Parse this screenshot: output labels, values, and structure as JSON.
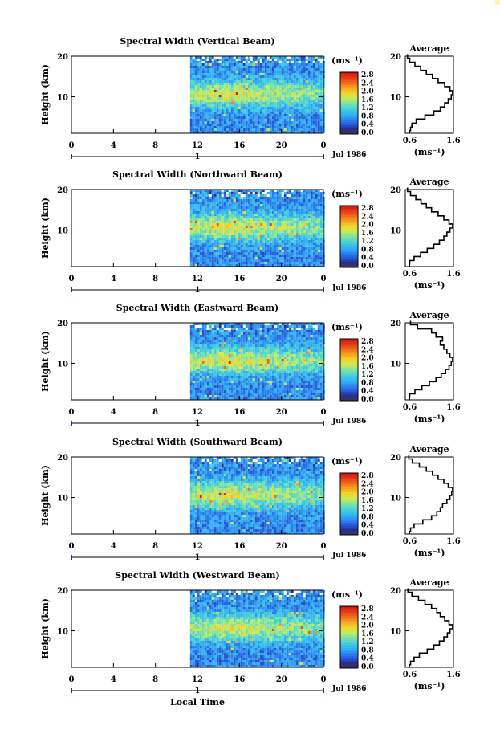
{
  "chart_data": [
    {
      "type": "heatmap",
      "title": "Spectral Width (Vertical Beam)",
      "ylabel": "Height (km)",
      "x_ticks": [
        "0",
        "4",
        "8",
        "12",
        "16",
        "20",
        "0"
      ],
      "xlim": [
        0,
        24
      ],
      "y_ticks": [
        "10",
        "20"
      ],
      "ylim": [
        1,
        20
      ],
      "data_start_hour": 11.3,
      "colorbar": {
        "unit": "(ms⁻¹)",
        "ticks": [
          "2.8",
          "2.4",
          "2.0",
          "1.6",
          "1.2",
          "0.8",
          "0.4",
          "0.0"
        ],
        "range": [
          0,
          3
        ]
      },
      "date_marker": "1",
      "date_label": "Jul 1986",
      "profile": {
        "title": "Average",
        "x_ticks": [
          "0.6",
          "1.6"
        ],
        "y_ticks": [
          "10",
          "20"
        ],
        "xlabel": "(ms⁻¹)",
        "xlim": [
          0.5,
          1.6
        ],
        "height": [
          2,
          3,
          4,
          5,
          6,
          7,
          8,
          9,
          10,
          11,
          12,
          13,
          14,
          15,
          16,
          17,
          18,
          19,
          20
        ],
        "width": [
          0.62,
          0.65,
          0.75,
          0.95,
          1.15,
          1.3,
          1.4,
          1.48,
          1.55,
          1.58,
          1.52,
          1.4,
          1.25,
          1.12,
          0.98,
          0.85,
          0.72,
          0.6,
          0.55
        ]
      }
    },
    {
      "type": "heatmap",
      "title": "Spectral Width (Northward Beam)",
      "ylabel": "Height (km)",
      "x_ticks": [
        "0",
        "4",
        "8",
        "12",
        "16",
        "20",
        "0"
      ],
      "xlim": [
        0,
        24
      ],
      "y_ticks": [
        "10",
        "20"
      ],
      "ylim": [
        1,
        20
      ],
      "data_start_hour": 11.3,
      "colorbar": {
        "unit": "(ms⁻¹)",
        "ticks": [
          "2.8",
          "2.4",
          "2.0",
          "1.6",
          "1.2",
          "0.8",
          "0.4",
          "0.0"
        ],
        "range": [
          0,
          3
        ]
      },
      "date_marker": "1",
      "date_label": "Jul 1986",
      "profile": {
        "title": "Average",
        "x_ticks": [
          "0.6",
          "1.6"
        ],
        "y_ticks": [
          "10",
          "20"
        ],
        "xlabel": "(ms⁻¹)",
        "xlim": [
          0.5,
          1.6
        ],
        "height": [
          2,
          3,
          4,
          5,
          6,
          7,
          8,
          9,
          10,
          11,
          12,
          13,
          14,
          15,
          16,
          17,
          18,
          19,
          20
        ],
        "width": [
          0.6,
          0.7,
          0.85,
          1.0,
          1.15,
          1.28,
          1.38,
          1.45,
          1.52,
          1.58,
          1.5,
          1.38,
          1.25,
          1.1,
          0.98,
          0.86,
          0.74,
          0.62,
          0.55
        ]
      }
    },
    {
      "type": "heatmap",
      "title": "Spectral Width (Eastward Beam)",
      "ylabel": "Height (km)",
      "x_ticks": [
        "0",
        "4",
        "8",
        "12",
        "16",
        "20",
        "0"
      ],
      "xlim": [
        0,
        24
      ],
      "y_ticks": [
        "10",
        "20"
      ],
      "ylim": [
        1,
        20
      ],
      "data_start_hour": 11.3,
      "colorbar": {
        "unit": "(ms⁻¹)",
        "ticks": [
          "2.8",
          "2.4",
          "2.0",
          "1.6",
          "1.2",
          "0.8",
          "0.4",
          "0.0"
        ],
        "range": [
          0,
          3
        ]
      },
      "date_marker": "1",
      "date_label": "Jul 1986",
      "profile": {
        "title": "Average",
        "x_ticks": [
          "0.6",
          "1.6"
        ],
        "y_ticks": [
          "10",
          "20"
        ],
        "xlabel": "(ms⁻¹)",
        "xlim": [
          0.5,
          1.6
        ],
        "height": [
          2,
          3,
          4,
          5,
          6,
          7,
          8,
          9,
          10,
          11,
          12,
          13,
          14,
          15,
          16,
          17,
          18,
          19,
          20
        ],
        "width": [
          0.6,
          0.72,
          0.88,
          1.05,
          1.2,
          1.32,
          1.42,
          1.5,
          1.55,
          1.58,
          1.52,
          1.45,
          1.38,
          1.3,
          1.35,
          1.2,
          1.1,
          0.78,
          0.62
        ]
      }
    },
    {
      "type": "heatmap",
      "title": "Spectral Width (Southward Beam)",
      "ylabel": "Height (km)",
      "x_ticks": [
        "0",
        "4",
        "8",
        "12",
        "16",
        "20",
        "0"
      ],
      "xlim": [
        0,
        24
      ],
      "y_ticks": [
        "10",
        "20"
      ],
      "ylim": [
        1,
        20
      ],
      "data_start_hour": 11.3,
      "colorbar": {
        "unit": "(ms⁻¹)",
        "ticks": [
          "2.8",
          "2.4",
          "2.0",
          "1.6",
          "1.2",
          "0.8",
          "0.4",
          "0.0"
        ],
        "range": [
          0,
          3
        ]
      },
      "date_marker": "1",
      "date_label": "Jul 1986",
      "profile": {
        "title": "Average",
        "x_ticks": [
          "0.6",
          "1.6"
        ],
        "y_ticks": [
          "10",
          "20"
        ],
        "xlabel": "(ms⁻¹)",
        "xlim": [
          0.5,
          1.6
        ],
        "height": [
          2,
          3,
          4,
          5,
          6,
          7,
          8,
          9,
          10,
          11,
          12,
          13,
          14,
          15,
          16,
          17,
          18,
          19,
          20
        ],
        "width": [
          0.62,
          0.7,
          0.9,
          1.1,
          1.22,
          1.3,
          1.35,
          1.45,
          1.52,
          1.56,
          1.58,
          1.48,
          1.38,
          1.25,
          1.12,
          0.98,
          0.82,
          0.66,
          0.58
        ]
      }
    },
    {
      "type": "heatmap",
      "title": "Spectral Width (Westward Beam)",
      "ylabel": "Height (km)",
      "xlabel": "Local Time",
      "x_ticks": [
        "0",
        "4",
        "8",
        "12",
        "16",
        "20",
        "0"
      ],
      "xlim": [
        0,
        24
      ],
      "y_ticks": [
        "10",
        "20"
      ],
      "ylim": [
        1,
        20
      ],
      "data_start_hour": 11.3,
      "colorbar": {
        "unit": "(ms⁻¹)",
        "ticks": [
          "2.8",
          "2.4",
          "2.0",
          "1.6",
          "1.2",
          "0.8",
          "0.4",
          "0.0"
        ],
        "range": [
          0,
          3
        ]
      },
      "date_marker": "1",
      "date_label": "Jul 1986",
      "profile": {
        "title": "Average",
        "x_ticks": [
          "0.6",
          "1.6"
        ],
        "y_ticks": [
          "10",
          "20"
        ],
        "xlabel": "(ms⁻¹)",
        "xlim": [
          0.5,
          1.6
        ],
        "height": [
          2,
          3,
          4,
          5,
          6,
          7,
          8,
          9,
          10,
          11,
          12,
          13,
          14,
          15,
          16,
          17,
          18,
          19,
          20
        ],
        "width": [
          0.62,
          0.7,
          0.82,
          1.0,
          1.15,
          1.28,
          1.38,
          1.46,
          1.52,
          1.58,
          1.5,
          1.4,
          1.3,
          1.22,
          1.1,
          0.95,
          0.8,
          0.65,
          0.56
        ]
      }
    }
  ]
}
